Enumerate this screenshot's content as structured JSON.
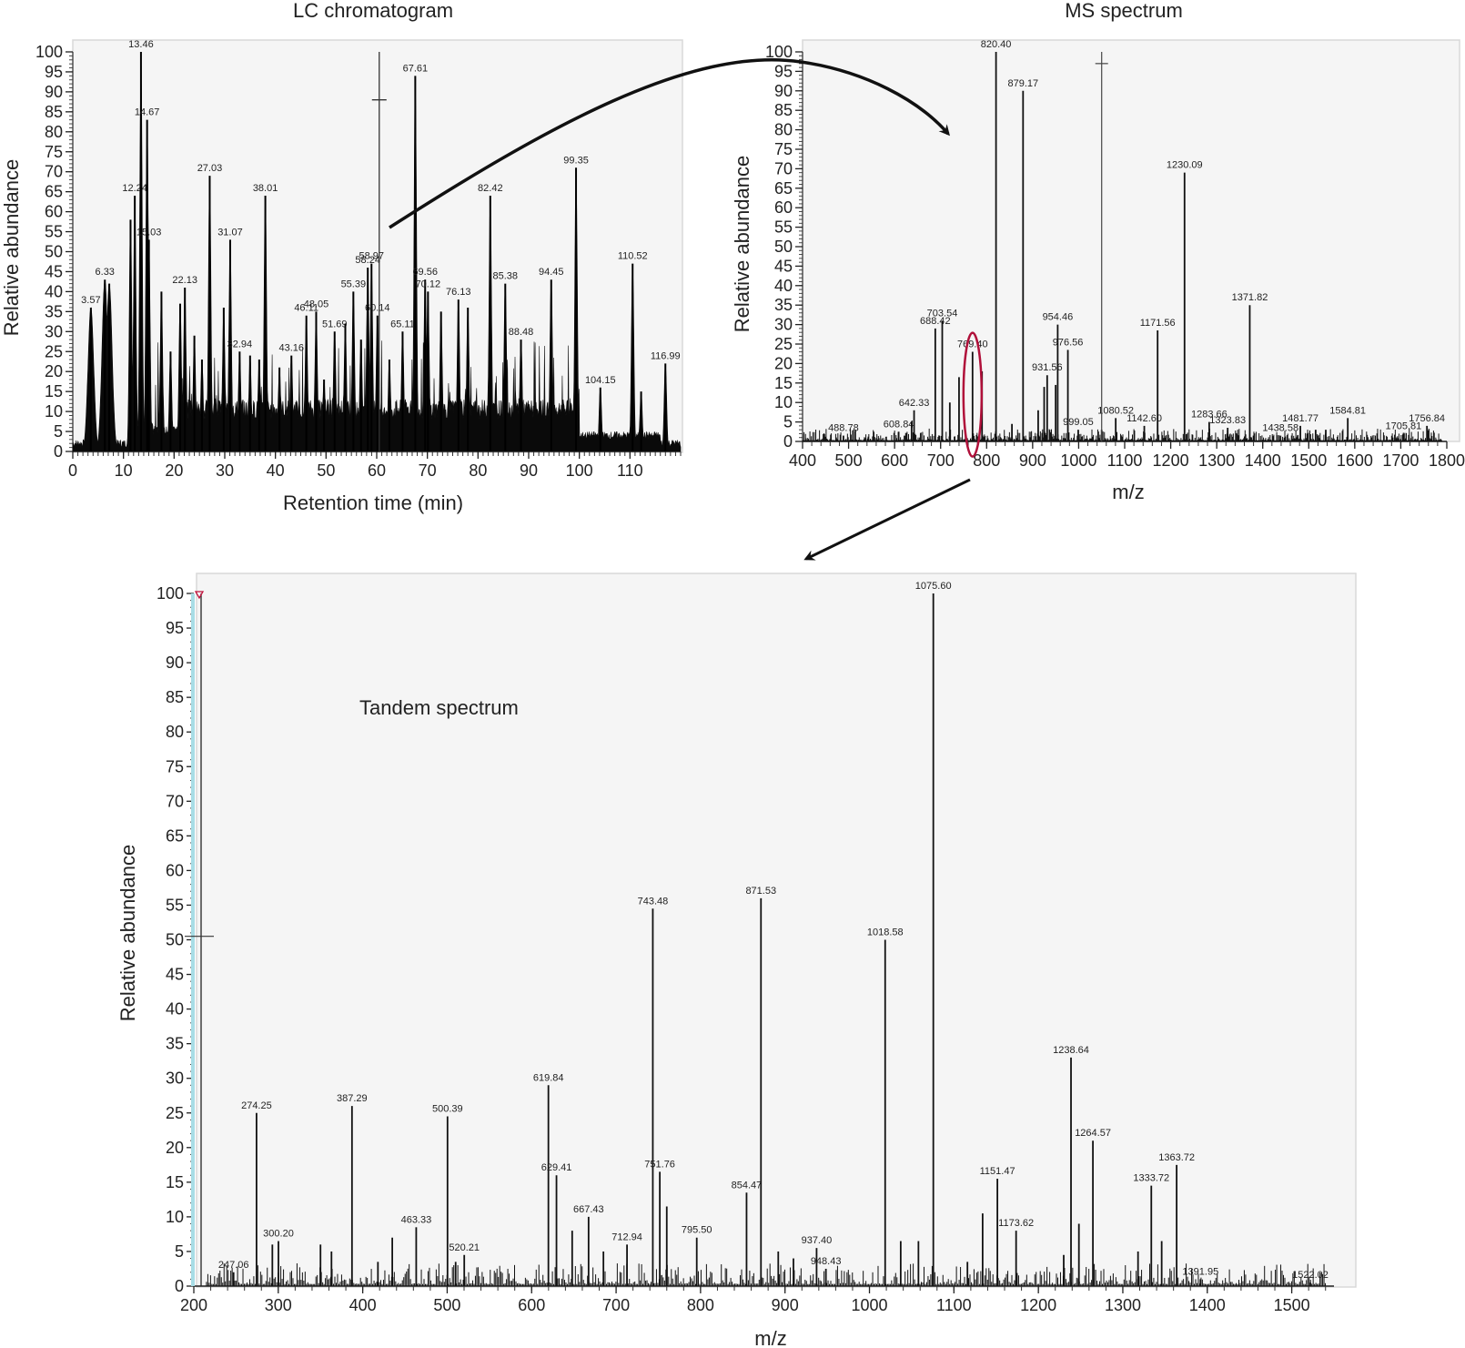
{
  "chart_data": [
    {
      "id": "lc",
      "type": "area",
      "title": "LC chromatogram",
      "xlabel": "Retention time (min)",
      "ylabel": "Relative abundance",
      "xlim": [
        0,
        120
      ],
      "ylim": [
        0,
        100
      ],
      "x_ticks": [
        0,
        10,
        20,
        30,
        40,
        50,
        60,
        70,
        80,
        90,
        100,
        110
      ],
      "y_ticks": [
        0,
        5,
        10,
        15,
        20,
        25,
        30,
        35,
        40,
        45,
        50,
        55,
        60,
        65,
        70,
        75,
        80,
        85,
        90,
        95,
        100
      ],
      "grid": false,
      "selected_scan_marker": {
        "x": 60.5,
        "y": 88
      },
      "peaks": [
        {
          "x": 3.57,
          "y": 36,
          "label": "3.57"
        },
        {
          "x": 6.33,
          "y": 43,
          "label": "6.33"
        },
        {
          "x": 7.2,
          "y": 42,
          "label": ""
        },
        {
          "x": 11.4,
          "y": 58,
          "label": ""
        },
        {
          "x": 12.24,
          "y": 64,
          "label": "12.24"
        },
        {
          "x": 13.46,
          "y": 100,
          "label": "13.46"
        },
        {
          "x": 14.67,
          "y": 83,
          "label": "14.67"
        },
        {
          "x": 15.03,
          "y": 53,
          "label": "15.03"
        },
        {
          "x": 17.5,
          "y": 40,
          "label": ""
        },
        {
          "x": 19.3,
          "y": 25,
          "label": ""
        },
        {
          "x": 21.2,
          "y": 37,
          "label": ""
        },
        {
          "x": 22.13,
          "y": 41,
          "label": "22.13"
        },
        {
          "x": 24.0,
          "y": 29,
          "label": ""
        },
        {
          "x": 25.5,
          "y": 23,
          "label": ""
        },
        {
          "x": 27.03,
          "y": 69,
          "label": "27.03"
        },
        {
          "x": 29.8,
          "y": 36,
          "label": ""
        },
        {
          "x": 31.07,
          "y": 53,
          "label": "31.07"
        },
        {
          "x": 32.94,
          "y": 25,
          "label": "32.94"
        },
        {
          "x": 35.0,
          "y": 24,
          "label": ""
        },
        {
          "x": 36.8,
          "y": 23,
          "label": ""
        },
        {
          "x": 38.01,
          "y": 64,
          "label": "38.01"
        },
        {
          "x": 40.8,
          "y": 21,
          "label": ""
        },
        {
          "x": 43.16,
          "y": 24,
          "label": "43.16"
        },
        {
          "x": 46.11,
          "y": 34,
          "label": "46.11"
        },
        {
          "x": 48.05,
          "y": 35,
          "label": "48.05"
        },
        {
          "x": 49.6,
          "y": 18,
          "label": ""
        },
        {
          "x": 51.69,
          "y": 30,
          "label": "51.69"
        },
        {
          "x": 53.8,
          "y": 32,
          "label": ""
        },
        {
          "x": 55.39,
          "y": 40,
          "label": "55.39"
        },
        {
          "x": 56.9,
          "y": 28,
          "label": ""
        },
        {
          "x": 58.24,
          "y": 46,
          "label": "58.24"
        },
        {
          "x": 58.97,
          "y": 47,
          "label": "58.97"
        },
        {
          "x": 60.14,
          "y": 34,
          "label": "60.14"
        },
        {
          "x": 62.5,
          "y": 23,
          "label": ""
        },
        {
          "x": 65.11,
          "y": 30,
          "label": "65.11"
        },
        {
          "x": 67.61,
          "y": 94,
          "label": "67.61"
        },
        {
          "x": 69.56,
          "y": 43,
          "label": "69.56"
        },
        {
          "x": 70.12,
          "y": 40,
          "label": "70.12"
        },
        {
          "x": 72.7,
          "y": 35,
          "label": ""
        },
        {
          "x": 76.13,
          "y": 38,
          "label": "76.13"
        },
        {
          "x": 78.0,
          "y": 36,
          "label": ""
        },
        {
          "x": 82.42,
          "y": 64,
          "label": "82.42"
        },
        {
          "x": 85.38,
          "y": 42,
          "label": "85.38"
        },
        {
          "x": 88.48,
          "y": 28,
          "label": "88.48"
        },
        {
          "x": 94.45,
          "y": 43,
          "label": "94.45"
        },
        {
          "x": 99.35,
          "y": 71,
          "label": "99.35"
        },
        {
          "x": 104.15,
          "y": 16,
          "label": "104.15"
        },
        {
          "x": 110.52,
          "y": 47,
          "label": "110.52"
        },
        {
          "x": 112.2,
          "y": 15,
          "label": ""
        },
        {
          "x": 116.99,
          "y": 22,
          "label": "116.99"
        }
      ]
    },
    {
      "id": "ms",
      "type": "bar",
      "title": "MS spectrum",
      "xlabel": "m/z",
      "ylabel": "Relative abundance",
      "xlim": [
        400,
        1800
      ],
      "ylim": [
        0,
        100
      ],
      "x_ticks": [
        400,
        500,
        600,
        700,
        800,
        900,
        1000,
        1100,
        1200,
        1300,
        1400,
        1500,
        1600,
        1700,
        1800
      ],
      "y_ticks": [
        0,
        5,
        10,
        15,
        20,
        25,
        30,
        35,
        40,
        45,
        50,
        55,
        60,
        65,
        70,
        75,
        80,
        85,
        90,
        95,
        100
      ],
      "grid": false,
      "selected_precursor": {
        "mz": 769.4,
        "highlight": "ellipse",
        "color": "#b0103a"
      },
      "scan_marker": {
        "mz": 1050,
        "y": 97
      },
      "peaks": [
        {
          "mz": 488.78,
          "y": 1.5,
          "label": "488.78"
        },
        {
          "mz": 608.84,
          "y": 2.5,
          "label": "608.84"
        },
        {
          "mz": 637.0,
          "y": 5,
          "label": ""
        },
        {
          "mz": 642.33,
          "y": 8,
          "label": "642.33"
        },
        {
          "mz": 688.42,
          "y": 29,
          "label": "688.42"
        },
        {
          "mz": 703.54,
          "y": 31,
          "label": "703.54"
        },
        {
          "mz": 720.0,
          "y": 10,
          "label": ""
        },
        {
          "mz": 740.0,
          "y": 16.5,
          "label": ""
        },
        {
          "mz": 769.4,
          "y": 23,
          "label": "769.40"
        },
        {
          "mz": 790.0,
          "y": 18,
          "label": ""
        },
        {
          "mz": 820.4,
          "y": 100,
          "label": "820.40"
        },
        {
          "mz": 855.0,
          "y": 4.5,
          "label": ""
        },
        {
          "mz": 879.17,
          "y": 90,
          "label": "879.17"
        },
        {
          "mz": 912.0,
          "y": 8,
          "label": ""
        },
        {
          "mz": 925.0,
          "y": 14,
          "label": ""
        },
        {
          "mz": 931.56,
          "y": 17,
          "label": "931.56"
        },
        {
          "mz": 950.0,
          "y": 14.5,
          "label": ""
        },
        {
          "mz": 954.46,
          "y": 30,
          "label": "954.46"
        },
        {
          "mz": 976.56,
          "y": 23.5,
          "label": "976.56"
        },
        {
          "mz": 999.05,
          "y": 3,
          "label": "999.05"
        },
        {
          "mz": 1050.0,
          "y": 3,
          "label": ""
        },
        {
          "mz": 1080.52,
          "y": 6,
          "label": "1080.52"
        },
        {
          "mz": 1142.6,
          "y": 4,
          "label": "1142.60"
        },
        {
          "mz": 1171.56,
          "y": 28.5,
          "label": "1171.56"
        },
        {
          "mz": 1230.09,
          "y": 69,
          "label": "1230.09"
        },
        {
          "mz": 1283.66,
          "y": 5,
          "label": "1283.66"
        },
        {
          "mz": 1323.83,
          "y": 3.5,
          "label": "1323.83"
        },
        {
          "mz": 1371.82,
          "y": 35,
          "label": "1371.82"
        },
        {
          "mz": 1438.58,
          "y": 1.5,
          "label": "1438.58"
        },
        {
          "mz": 1481.77,
          "y": 4,
          "label": "1481.77"
        },
        {
          "mz": 1515.0,
          "y": 3,
          "label": ""
        },
        {
          "mz": 1537.0,
          "y": 3,
          "label": ""
        },
        {
          "mz": 1584.81,
          "y": 6,
          "label": "1584.81"
        },
        {
          "mz": 1705.81,
          "y": 2,
          "label": "1705.81"
        },
        {
          "mz": 1756.84,
          "y": 4,
          "label": "1756.84"
        }
      ]
    },
    {
      "id": "msms",
      "type": "bar",
      "title": "Tandem spectrum",
      "xlabel": "m/z",
      "ylabel": "Relative abundance",
      "xlim": [
        200,
        1550
      ],
      "ylim": [
        0,
        100
      ],
      "x_ticks": [
        200,
        300,
        400,
        500,
        600,
        700,
        800,
        900,
        1000,
        1100,
        1200,
        1300,
        1400,
        1500
      ],
      "y_ticks": [
        0,
        5,
        10,
        15,
        20,
        25,
        30,
        35,
        40,
        45,
        50,
        55,
        60,
        65,
        70,
        75,
        80,
        85,
        90,
        95,
        100
      ],
      "grid": false,
      "peaks": [
        {
          "mz": 247.06,
          "y": 2,
          "label": "247.06"
        },
        {
          "mz": 274.25,
          "y": 25,
          "label": "274.25"
        },
        {
          "mz": 293.0,
          "y": 6,
          "label": ""
        },
        {
          "mz": 300.2,
          "y": 6.5,
          "label": "300.20"
        },
        {
          "mz": 350.0,
          "y": 6,
          "label": ""
        },
        {
          "mz": 363.0,
          "y": 5,
          "label": ""
        },
        {
          "mz": 387.29,
          "y": 26,
          "label": "387.29"
        },
        {
          "mz": 418.0,
          "y": 3.5,
          "label": ""
        },
        {
          "mz": 435.0,
          "y": 7,
          "label": ""
        },
        {
          "mz": 463.33,
          "y": 8.5,
          "label": "463.33"
        },
        {
          "mz": 500.39,
          "y": 24.5,
          "label": "500.39"
        },
        {
          "mz": 510.0,
          "y": 3.5,
          "label": ""
        },
        {
          "mz": 520.21,
          "y": 4.5,
          "label": "520.21"
        },
        {
          "mz": 619.84,
          "y": 29,
          "label": "619.84"
        },
        {
          "mz": 629.41,
          "y": 16,
          "label": "629.41"
        },
        {
          "mz": 648.0,
          "y": 8,
          "label": ""
        },
        {
          "mz": 667.43,
          "y": 10,
          "label": "667.43"
        },
        {
          "mz": 685.0,
          "y": 5,
          "label": ""
        },
        {
          "mz": 712.94,
          "y": 6,
          "label": "712.94"
        },
        {
          "mz": 743.48,
          "y": 54.5,
          "label": "743.48"
        },
        {
          "mz": 751.76,
          "y": 16.5,
          "label": "751.76"
        },
        {
          "mz": 760.0,
          "y": 11.5,
          "label": ""
        },
        {
          "mz": 795.5,
          "y": 7,
          "label": "795.50"
        },
        {
          "mz": 854.47,
          "y": 13.5,
          "label": "854.47"
        },
        {
          "mz": 871.53,
          "y": 56,
          "label": "871.53"
        },
        {
          "mz": 892.0,
          "y": 5,
          "label": ""
        },
        {
          "mz": 910.0,
          "y": 4,
          "label": ""
        },
        {
          "mz": 937.4,
          "y": 5.5,
          "label": "937.40"
        },
        {
          "mz": 948.43,
          "y": 2.5,
          "label": "948.43"
        },
        {
          "mz": 1018.58,
          "y": 50,
          "label": "1018.58"
        },
        {
          "mz": 1037.0,
          "y": 6.5,
          "label": ""
        },
        {
          "mz": 1058.0,
          "y": 6.5,
          "label": ""
        },
        {
          "mz": 1075.6,
          "y": 100,
          "label": "1075.60"
        },
        {
          "mz": 1116.0,
          "y": 3.5,
          "label": ""
        },
        {
          "mz": 1134.0,
          "y": 10.5,
          "label": ""
        },
        {
          "mz": 1151.47,
          "y": 15.5,
          "label": "1151.47"
        },
        {
          "mz": 1173.62,
          "y": 8,
          "label": "1173.62"
        },
        {
          "mz": 1230.0,
          "y": 4.5,
          "label": ""
        },
        {
          "mz": 1238.64,
          "y": 33,
          "label": "1238.64"
        },
        {
          "mz": 1248.0,
          "y": 9,
          "label": ""
        },
        {
          "mz": 1264.57,
          "y": 21,
          "label": "1264.57"
        },
        {
          "mz": 1318.0,
          "y": 5,
          "label": ""
        },
        {
          "mz": 1333.72,
          "y": 14.5,
          "label": "1333.72"
        },
        {
          "mz": 1346.0,
          "y": 6.5,
          "label": ""
        },
        {
          "mz": 1363.72,
          "y": 17.5,
          "label": "1363.72"
        },
        {
          "mz": 1391.95,
          "y": 1,
          "label": "1391.95"
        },
        {
          "mz": 1522.02,
          "y": 0.5,
          "label": "1522.02"
        }
      ]
    }
  ],
  "annotations": {
    "arrow_lc_to_ms": "LC peak selected → MS spectrum",
    "arrow_ms_to_msms": "precursor 769.40 selected → tandem spectrum",
    "highlight_color": "#b0103a",
    "label_leader_color": "#3a9a6a"
  }
}
